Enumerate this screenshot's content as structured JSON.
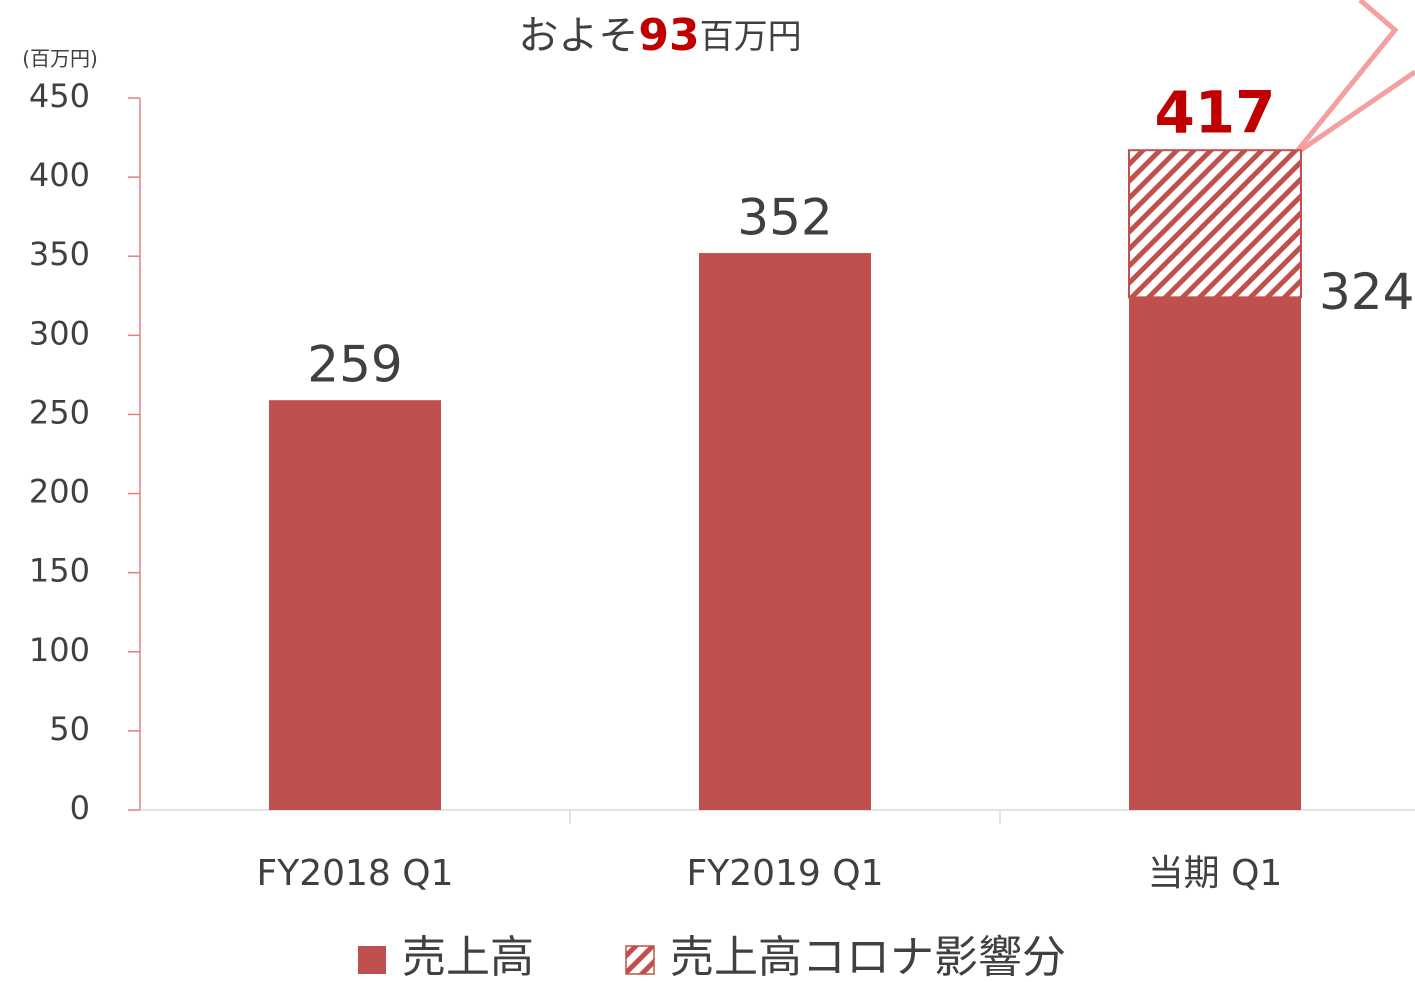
{
  "chart_data": {
    "type": "stacked_bar",
    "callout": [
      "およそ",
      "93",
      "百万円"
    ],
    "y_label": "(百万円)",
    "categories": [
      "FY2018 Q1",
      "FY2019 Q1",
      "当期 Q1"
    ],
    "series": [
      {
        "name": "売上高",
        "color": "#c0504d",
        "values": [
          259,
          352,
          324
        ]
      },
      {
        "name": "売上高コロナ影響分",
        "color": "#c0504d",
        "pattern": "hatch",
        "values": [
          null,
          null,
          93
        ]
      }
    ],
    "totals": [
      null,
      null,
      417
    ],
    "total_color": "#c00000",
    "ylim": [
      0,
      450
    ],
    "yticks": [
      0,
      50,
      100,
      150,
      200,
      250,
      300,
      350,
      400,
      450
    ],
    "legend": "bottom"
  }
}
